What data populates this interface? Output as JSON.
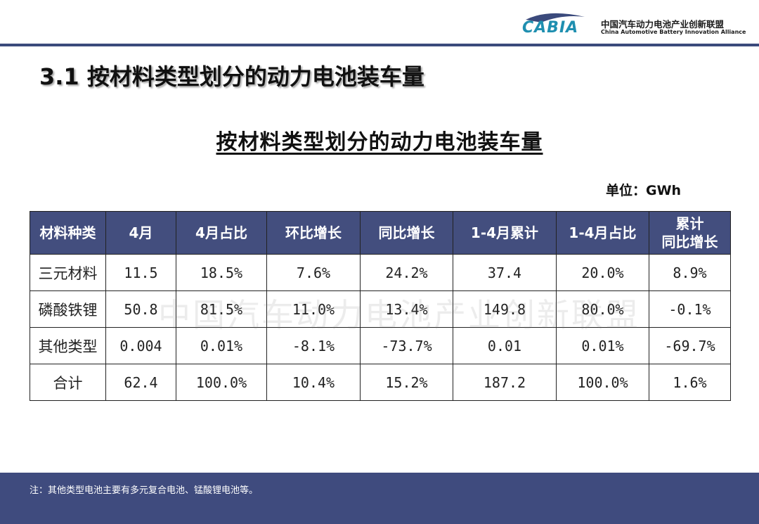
{
  "header": {
    "logo_text": "CABIA",
    "org_name_cn": "中国汽车动力电池产业创新联盟",
    "org_name_en": "China Automotive Battery Innovation Alliance"
  },
  "page_title": "3.1 按材料类型划分的动力电池装车量",
  "table_title": "按材料类型划分的动力电池装车量",
  "unit": "单位：GWh",
  "watermark": "中国汽车动力电池产业创新联盟",
  "table": {
    "headers": [
      "材料种类",
      "4月",
      "4月占比",
      "环比增长",
      "同比增长",
      "1-4月累计",
      "1-4月占比",
      "累计\n同比增长"
    ],
    "header_last_line1": "累计",
    "header_last_line2": "同比增长",
    "rows": [
      [
        "三元材料",
        "11.5",
        "18.5%",
        "7.6%",
        "24.2%",
        "37.4",
        "20.0%",
        "8.9%"
      ],
      [
        "磷酸铁锂",
        "50.8",
        "81.5%",
        "11.0%",
        "13.4%",
        "149.8",
        "80.0%",
        "-0.1%"
      ],
      [
        "其他类型",
        "0.004",
        "0.01%",
        "-8.1%",
        "-73.7%",
        "0.01",
        "0.01%",
        "-69.7%"
      ],
      [
        "合计",
        "62.4",
        "100.0%",
        "10.4%",
        "15.2%",
        "187.2",
        "100.0%",
        "1.6%"
      ]
    ]
  },
  "footer": {
    "note": "注：其他类型电池主要有多元复合电池、锰酸锂电池等。"
  },
  "colors": {
    "accent": "#434e7e",
    "logo": "#1f8fb0"
  }
}
